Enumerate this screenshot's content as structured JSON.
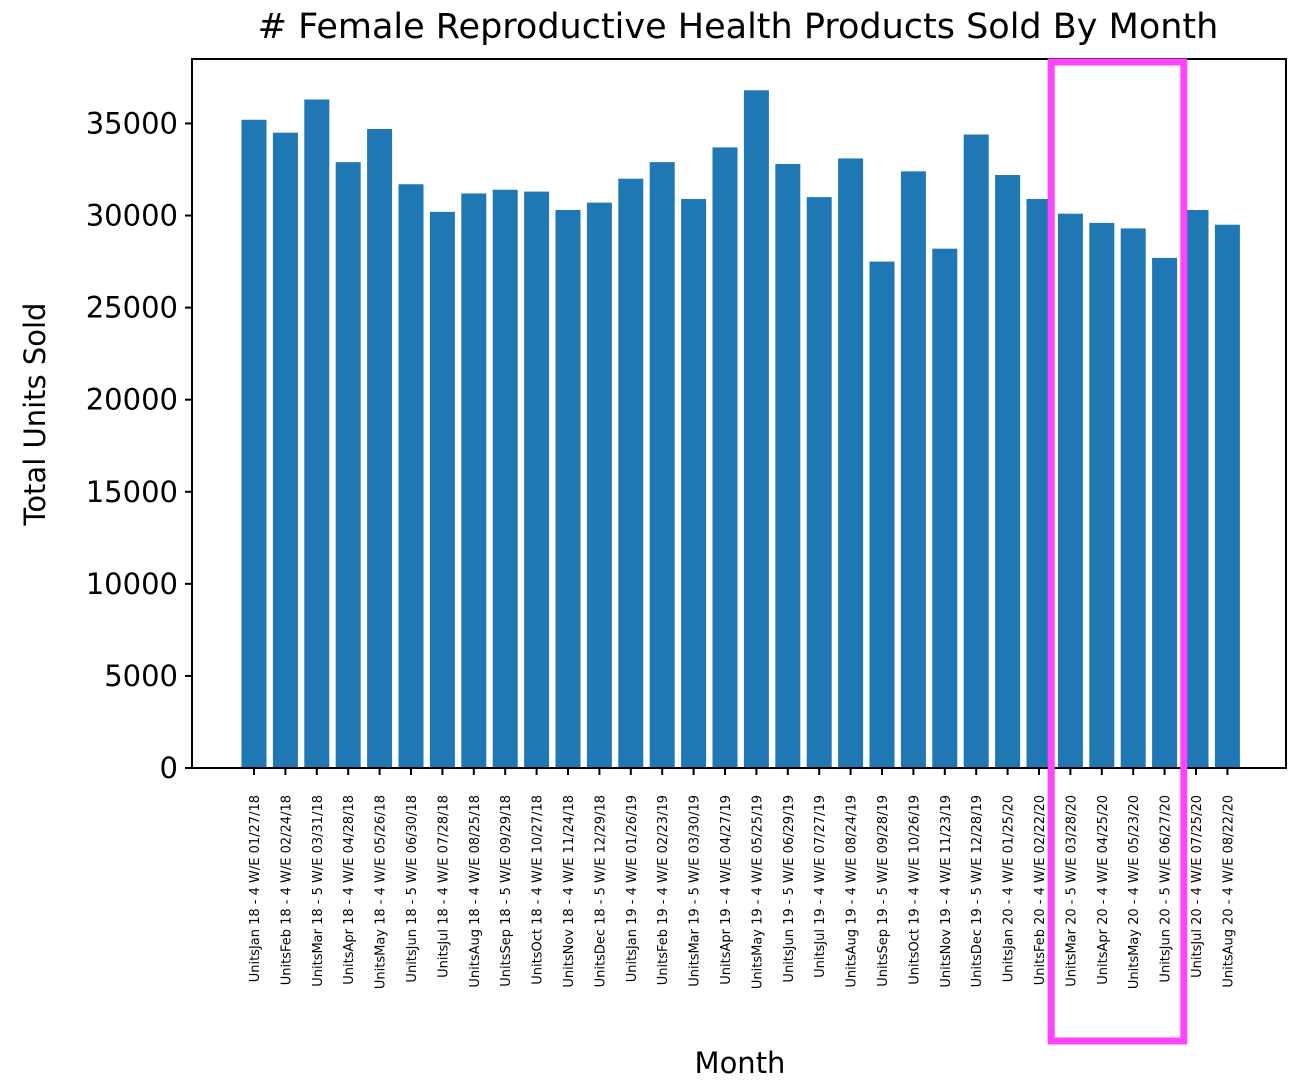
{
  "chart_data": {
    "type": "bar",
    "title": "# Female Reproductive Health Products Sold By Month",
    "xlabel": "Month",
    "ylabel": "Total Units Sold",
    "ylim": [
      0,
      38500
    ],
    "yticks": [
      0,
      5000,
      10000,
      15000,
      20000,
      25000,
      30000,
      35000
    ],
    "ytick_labels": [
      "0",
      "5000",
      "10000",
      "15000",
      "20000",
      "25000",
      "30000",
      "35000"
    ],
    "grid": false,
    "bar_color": "#1f77b4",
    "highlight_color": "#ff44ff",
    "highlight_categories": [
      "UnitsMar 20 - 5 W/E 03/28/20",
      "UnitsApr 20 - 4 W/E 04/25/20",
      "UnitsMay 20 - 4 W/E 05/23/20",
      "UnitsJun 20 - 5 W/E 06/27/20"
    ],
    "categories": [
      "UnitsJan 18 - 4 W/E 01/27/18",
      "UnitsFeb 18 - 4 W/E 02/24/18",
      "UnitsMar 18 - 5 W/E 03/31/18",
      "UnitsApr 18 - 4 W/E 04/28/18",
      "UnitsMay 18 - 4 W/E 05/26/18",
      "UnitsJun 18 - 5 W/E 06/30/18",
      "UnitsJul 18 - 4 W/E 07/28/18",
      "UnitsAug 18 - 4 W/E 08/25/18",
      "UnitsSep 18 - 5 W/E 09/29/18",
      "UnitsOct 18 - 4 W/E 10/27/18",
      "UnitsNov 18 - 4 W/E 11/24/18",
      "UnitsDec 18 - 5 W/E 12/29/18",
      "UnitsJan 19 - 4 W/E 01/26/19",
      "UnitsFeb 19 - 4 W/E 02/23/19",
      "UnitsMar 19 - 5 W/E 03/30/19",
      "UnitsApr 19 - 4 W/E 04/27/19",
      "UnitsMay 19 - 4 W/E 05/25/19",
      "UnitsJun 19 - 5 W/E 06/29/19",
      "UnitsJul 19 - 4 W/E 07/27/19",
      "UnitsAug 19 - 4 W/E 08/24/19",
      "UnitsSep 19 - 5 W/E 09/28/19",
      "UnitsOct 19 - 4 W/E 10/26/19",
      "UnitsNov 19 - 4 W/E 11/23/19",
      "UnitsDec 19 - 5 W/E 12/28/19",
      "UnitsJan 20 - 4 W/E 01/25/20",
      "UnitsFeb 20 - 4 W/E 02/22/20",
      "UnitsMar 20 - 5 W/E 03/28/20",
      "UnitsApr 20 - 4 W/E 04/25/20",
      "UnitsMay 20 - 4 W/E 05/23/20",
      "UnitsJun 20 - 5 W/E 06/27/20",
      "UnitsJul 20 - 4 W/E 07/25/20",
      "UnitsAug 20 - 4 W/E 08/22/20"
    ],
    "values": [
      35200,
      34500,
      36300,
      32900,
      34700,
      31700,
      30200,
      31200,
      31400,
      31300,
      30300,
      30700,
      32000,
      32900,
      30900,
      33700,
      36800,
      32800,
      31000,
      33100,
      27500,
      32400,
      28200,
      34400,
      32200,
      30900,
      30100,
      29600,
      29300,
      27700,
      30300,
      29500
    ]
  }
}
